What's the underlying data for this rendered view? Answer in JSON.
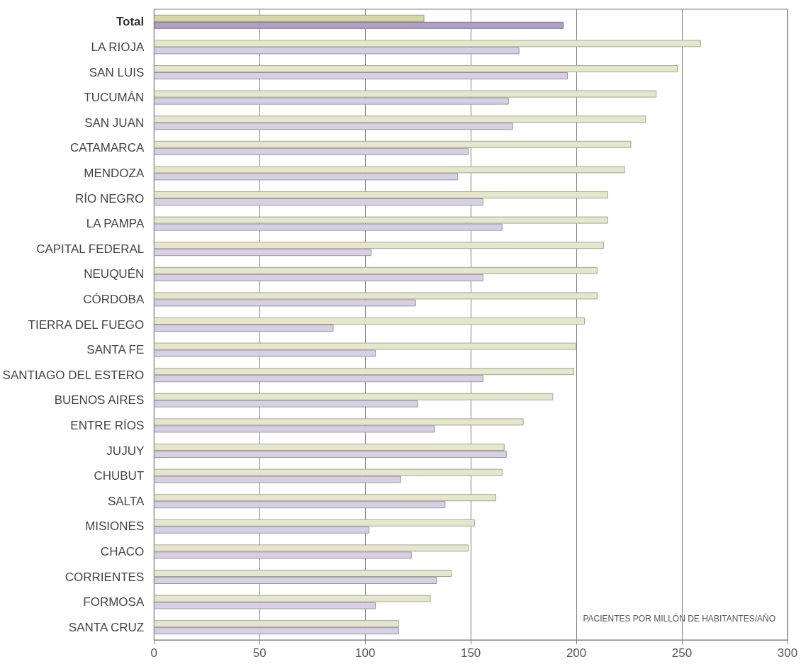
{
  "chart_data": {
    "type": "bar",
    "orientation": "horizontal",
    "categories": [
      "Total",
      "LA RIOJA",
      "SAN LUIS",
      "TUCUMÁN",
      "SAN JUAN",
      "CATAMARCA",
      "MENDOZA",
      "RÍO NEGRO",
      "LA PAMPA",
      "CAPITAL FEDERAL",
      "NEUQUÉN",
      "CÓRDOBA",
      "TIERRA DEL FUEGO",
      "SANTA FE",
      "SANTIAGO DEL ESTERO",
      "BUENOS AIRES",
      "ENTRE RÍOS",
      "JUJUY",
      "CHUBUT",
      "SALTA",
      "MISIONES",
      "CHACO",
      "CORRIENTES",
      "FORMOSA",
      "SANTA CRUZ"
    ],
    "series": [
      {
        "colors": [
          "#d5d9a8",
          "#e6e6cc",
          "#e6e6cc",
          "#e6e6cc",
          "#e6e6cc",
          "#e6e6cc",
          "#e6e6cc",
          "#e6e6cc",
          "#e6e6cc",
          "#e6e6cc",
          "#e6e6cc",
          "#e6e6cc",
          "#e6e6cc",
          "#e6e6cc",
          "#e6e6cc",
          "#e6e6cc",
          "#e6e6cc",
          "#e6e6cc",
          "#e6e6cc",
          "#e6e6cc",
          "#e6e6cc",
          "#e6e6cc",
          "#e6e6cc",
          "#e6e6cc",
          "#e6e6cc"
        ],
        "values": [
          128,
          259,
          248,
          238,
          233,
          226,
          223,
          215,
          215,
          213,
          210,
          210,
          204,
          200,
          199,
          189,
          175,
          166,
          165,
          162,
          152,
          149,
          141,
          131,
          116
        ]
      },
      {
        "colors": [
          "#b09fc4",
          "#d7cfe3",
          "#d7cfe3",
          "#d7cfe3",
          "#d7cfe3",
          "#d7cfe3",
          "#d7cfe3",
          "#d7cfe3",
          "#d7cfe3",
          "#d7cfe3",
          "#d7cfe3",
          "#d7cfe3",
          "#d7cfe3",
          "#d7cfe3",
          "#d7cfe3",
          "#d7cfe3",
          "#d7cfe3",
          "#d7cfe3",
          "#d7cfe3",
          "#d7cfe3",
          "#d7cfe3",
          "#d7cfe3",
          "#d7cfe3",
          "#d7cfe3",
          "#d7cfe3"
        ],
        "values": [
          194,
          173,
          196,
          168,
          170,
          149,
          144,
          156,
          165,
          103,
          156,
          124,
          85,
          105,
          156,
          125,
          133,
          167,
          117,
          138,
          102,
          122,
          134,
          105,
          116
        ]
      }
    ],
    "xlim": [
      0,
      300
    ],
    "xticks": [
      0,
      50,
      100,
      150,
      200,
      250,
      300
    ],
    "grid": "x",
    "annotations": [
      "PACIENTES POR MILLÓN DE HABITANTES/AÑO"
    ]
  }
}
